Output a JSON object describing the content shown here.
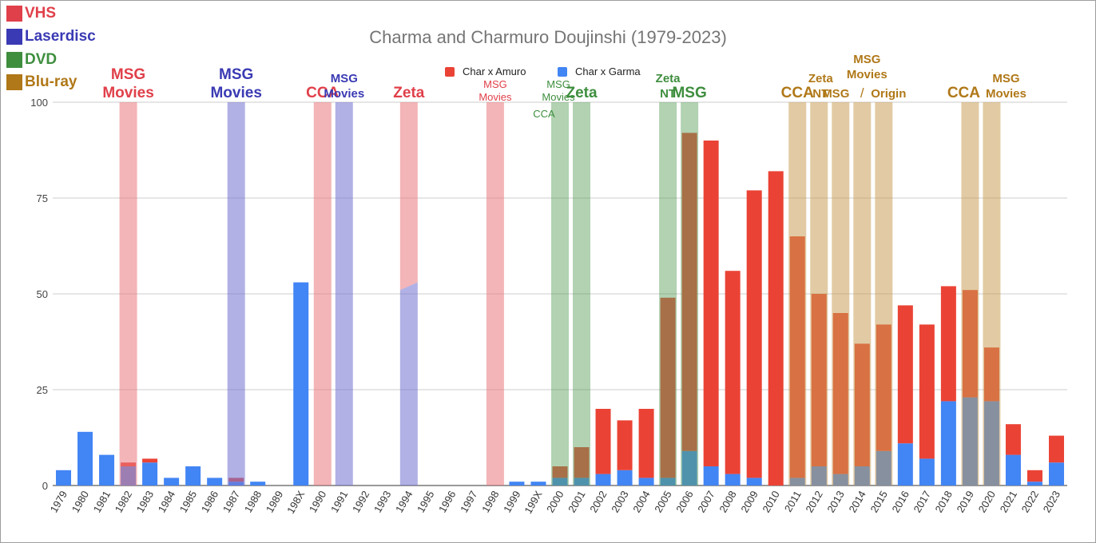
{
  "chart_data": {
    "type": "bar",
    "stacked": true,
    "title": "Charma and Charmuro Doujinshi (1979-2023)",
    "categories": [
      "1979",
      "1980",
      "1981",
      "1982",
      "1983",
      "1984",
      "1985",
      "1986",
      "1987",
      "1988",
      "1989",
      "198X",
      "1990",
      "1991",
      "1992",
      "1993",
      "1994",
      "1995",
      "1996",
      "1997",
      "1998",
      "1999",
      "199X",
      "2000",
      "2001",
      "2002",
      "2003",
      "2004",
      "2005",
      "2006",
      "2007",
      "2008",
      "2009",
      "2010",
      "2011",
      "2012",
      "2013",
      "2014",
      "2015",
      "2016",
      "2017",
      "2018",
      "2019",
      "2020",
      "2021",
      "2022",
      "2023"
    ],
    "series": [
      {
        "name": "Char x Garma",
        "color": "#4285f4",
        "values": [
          4,
          14,
          8,
          5,
          6,
          2,
          5,
          2,
          1,
          1,
          0,
          53,
          0,
          0,
          0,
          0,
          0,
          0,
          0,
          0,
          0,
          1,
          1,
          2,
          2,
          3,
          4,
          2,
          2,
          9,
          5,
          3,
          2,
          0,
          2,
          5,
          3,
          5,
          9,
          11,
          7,
          22,
          23,
          22,
          8,
          1,
          6
        ]
      },
      {
        "name": "Char x Amuro",
        "color": "#ea4335",
        "values": [
          0,
          0,
          0,
          1,
          1,
          0,
          0,
          0,
          1,
          0,
          0,
          0,
          0,
          0,
          0,
          0,
          0,
          0,
          0,
          0,
          0,
          0,
          0,
          3,
          8,
          17,
          13,
          18,
          47,
          83,
          85,
          53,
          75,
          82,
          63,
          45,
          42,
          32,
          33,
          36,
          35,
          30,
          28,
          14,
          8,
          3,
          7
        ]
      }
    ],
    "ylim": [
      0,
      100
    ],
    "yticks": [
      0,
      25,
      50,
      75,
      100
    ],
    "grid": true,
    "legend": "top-center",
    "release_legend": [
      {
        "label": "VHS",
        "color": "#e0404a",
        "key": "vhs"
      },
      {
        "label": "Laserdisc",
        "color": "#3a3ab4",
        "key": "ld"
      },
      {
        "label": "DVD",
        "color": "#3e8e3e",
        "key": "dvd"
      },
      {
        "label": "Blu-ray",
        "color": "#b07818",
        "key": "bd"
      }
    ],
    "release_bands": [
      {
        "category": "1982",
        "format": "vhs"
      },
      {
        "category": "1987",
        "format": "ld"
      },
      {
        "category": "1990",
        "format": "vhs"
      },
      {
        "category": "1991",
        "format": "ld"
      },
      {
        "category": "1994",
        "format": "split"
      },
      {
        "category": "1998",
        "format": "vhs"
      },
      {
        "category": "2000",
        "format": "dvd"
      },
      {
        "category": "2001",
        "format": "dvd"
      },
      {
        "category": "2005",
        "format": "dvd"
      },
      {
        "category": "2006",
        "format": "dvd"
      },
      {
        "category": "2011",
        "format": "bd"
      },
      {
        "category": "2012",
        "format": "bd"
      },
      {
        "category": "2013",
        "format": "bd"
      },
      {
        "category": "2014",
        "format": "bd"
      },
      {
        "category": "2015",
        "format": "bd"
      },
      {
        "category": "2019",
        "format": "bd"
      },
      {
        "category": "2020",
        "format": "bd"
      }
    ],
    "annotations": [
      {
        "lines": [
          "MSG",
          "Movies"
        ],
        "format": "vhs",
        "anchor": "1982",
        "size": "big"
      },
      {
        "lines": [
          "MSG",
          "Movies"
        ],
        "format": "ld",
        "anchor": "1987",
        "size": "big"
      },
      {
        "lines": [
          "CCA"
        ],
        "format": "vhs",
        "anchor": "1990",
        "size": "big"
      },
      {
        "lines": [
          "MSG",
          "Movies"
        ],
        "format": "ld",
        "anchor": "1991",
        "size": "mid"
      },
      {
        "lines": [
          "Zeta"
        ],
        "format": "vhs",
        "anchor": "1994",
        "size": "big"
      },
      {
        "lines": [
          "MSG",
          "Movies"
        ],
        "format": "vhs",
        "anchor": "1998",
        "size": "small"
      },
      {
        "lines": [
          "MSG",
          "Movies"
        ],
        "format": "dvd",
        "anchor": "2000",
        "size": "small"
      },
      {
        "lines": [
          "CCA"
        ],
        "format": "dvd",
        "anchor": "2000",
        "size": "small",
        "position": "low"
      },
      {
        "lines": [
          "Zeta"
        ],
        "format": "dvd",
        "anchor": "2001",
        "size": "big"
      },
      {
        "lines": [
          "Zeta",
          "NT"
        ],
        "format": "dvd",
        "anchor": "2005",
        "size": "mid"
      },
      {
        "lines": [
          "MSG"
        ],
        "format": "dvd",
        "anchor": "2006",
        "size": "big"
      },
      {
        "lines": [
          "CCA"
        ],
        "format": "bd",
        "anchor": "2011",
        "size": "big"
      },
      {
        "lines": [
          "Zeta",
          "NT"
        ],
        "format": "bd",
        "anchor": "2012",
        "size": "mid"
      },
      {
        "lines": [
          "MSG"
        ],
        "format": "bd",
        "anchor": "2013",
        "size": "mid"
      },
      {
        "lines": [
          "MSG",
          "Movies",
          "/"
        ],
        "format": "bd",
        "anchor": "2014",
        "size": "mid"
      },
      {
        "lines": [
          "Origin"
        ],
        "format": "bd",
        "anchor": "2015",
        "size": "mid"
      },
      {
        "lines": [
          "CCA"
        ],
        "format": "bd",
        "anchor": "2019",
        "size": "big"
      },
      {
        "lines": [
          "MSG",
          "Movies"
        ],
        "format": "bd",
        "anchor": "2020",
        "size": "mid"
      }
    ]
  }
}
